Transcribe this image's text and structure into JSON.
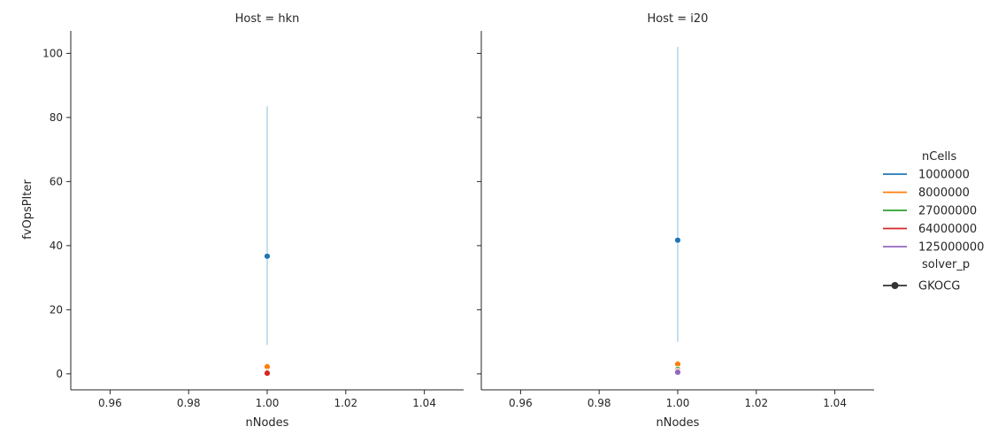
{
  "chart_data": {
    "type": "line",
    "facet_variable": "Host",
    "facets": [
      {
        "title": "Host = hkn",
        "xlabel": "nNodes",
        "ylabel": "fvOpsPIter",
        "series": [
          {
            "name": "1000000",
            "x": [
              1.0
            ],
            "y": [
              36.7
            ],
            "ci": [
              9,
              83.5
            ]
          },
          {
            "name": "8000000",
            "x": [
              1.0
            ],
            "y": [
              2.2
            ],
            "ci": [
              1.6,
              2.9
            ]
          },
          {
            "name": "27000000",
            "x": [
              1.0
            ],
            "y": [
              0.5
            ],
            "ci": [
              0.4,
              0.6
            ]
          },
          {
            "name": "64000000",
            "x": [
              1.0
            ],
            "y": [
              0.2
            ],
            "ci": [
              0.1,
              0.3
            ]
          }
        ]
      },
      {
        "title": "Host = i20",
        "xlabel": "nNodes",
        "ylabel": "",
        "series": [
          {
            "name": "1000000",
            "x": [
              1.0
            ],
            "y": [
              41.7
            ],
            "ci": [
              10,
              102
            ]
          },
          {
            "name": "8000000",
            "x": [
              1.0
            ],
            "y": [
              3.0
            ],
            "ci": [
              2.2,
              4.2
            ]
          },
          {
            "name": "27000000",
            "x": [
              1.0
            ],
            "y": [
              1.4
            ],
            "ci": [
              1.1,
              1.7
            ]
          },
          {
            "name": "64000000",
            "x": [
              1.0
            ],
            "y": [
              0.9
            ],
            "ci": [
              0.7,
              1.1
            ]
          },
          {
            "name": "125000000",
            "x": [
              1.0
            ],
            "y": [
              0.5
            ],
            "ci": [
              0.3,
              0.7
            ]
          }
        ]
      }
    ],
    "xlim": [
      0.95,
      1.05
    ],
    "ylim": [
      -5,
      107
    ],
    "xticks": [
      "0.96",
      "0.98",
      "1.00",
      "1.02",
      "1.04"
    ],
    "xtick_values": [
      0.96,
      0.98,
      1.0,
      1.02,
      1.04
    ],
    "yticks": [
      "0",
      "20",
      "40",
      "60",
      "80",
      "100"
    ],
    "ytick_values": [
      0,
      20,
      40,
      60,
      80,
      100
    ],
    "grid": false,
    "legend": {
      "placement": "right",
      "hue_title": "nCells",
      "hue_entries": [
        {
          "label": "1000000",
          "color": "#1f77b4"
        },
        {
          "label": "8000000",
          "color": "#ff7f0e"
        },
        {
          "label": "27000000",
          "color": "#2ca02c"
        },
        {
          "label": "64000000",
          "color": "#d62728"
        },
        {
          "label": "125000000",
          "color": "#9467bd"
        }
      ],
      "style_title": "solver_p",
      "style_entries": [
        {
          "label": "GKOCG",
          "color": "#333333",
          "marker": "circle"
        }
      ]
    }
  }
}
